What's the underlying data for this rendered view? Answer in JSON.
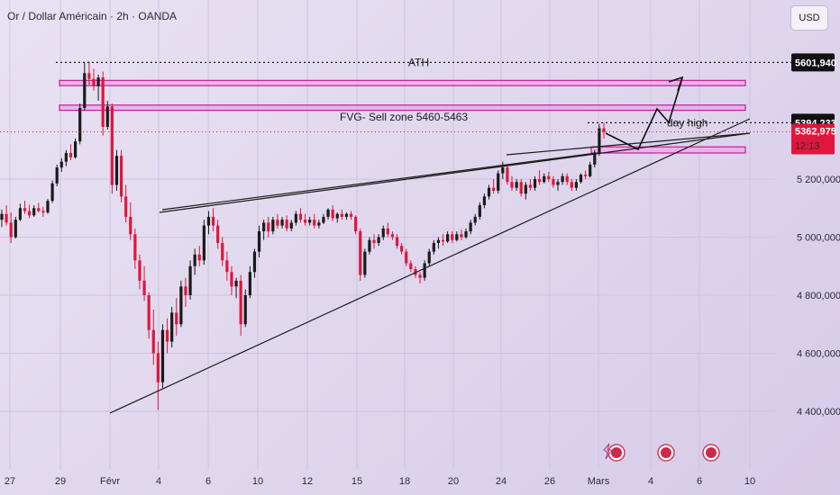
{
  "header": {
    "title": "Or / Dollar Américain · 2h · OANDA"
  },
  "currency_button": {
    "label": "USD"
  },
  "colors": {
    "up": "#1a1a1a",
    "down": "#e0163c",
    "zone_fill": "#e9a8e6",
    "zone_stroke": "#c21e9a",
    "current_price_bg": "#e0163c",
    "label_bg": "#111111"
  },
  "chart_data": {
    "type": "candlestick",
    "title": "Or / Dollar Américain · 2h · OANDA",
    "y_axis": {
      "ticks": [
        4400,
        4600,
        4800,
        5000,
        5200
      ],
      "tick_labels": [
        "4 400,000",
        "4 600,000",
        "4 800,000",
        "5 000,000",
        "5 200,000"
      ]
    },
    "x_axis": {
      "ticks": [
        "27",
        "29",
        "Févr",
        "4",
        "6",
        "10",
        "12",
        "15",
        "18",
        "20",
        "24",
        "26",
        "Mars",
        "4",
        "6",
        "10"
      ]
    },
    "price_labels": [
      {
        "value": 5601.94,
        "text": "5601,940",
        "style": "dark"
      },
      {
        "value": 5394.233,
        "text": "5394,233",
        "style": "dark"
      },
      {
        "value": 5362.975,
        "text": "5362,975",
        "sub": "12:13",
        "style": "current"
      }
    ],
    "annotations": {
      "ath": "ATH",
      "fvg": "FVG- Sell zone  5460-5463",
      "day_high": "day high"
    },
    "zones": [
      [
        5540,
        5522
      ],
      [
        5455,
        5437
      ],
      [
        5311,
        5290
      ]
    ],
    "trendlines": [
      {
        "from": [
          "29 janv.",
          4900
        ],
        "to": [
          "28 févr.",
          5340
        ]
      },
      {
        "from": [
          "1 févr.",
          4406
        ],
        "to": [
          "10 mars",
          5420
        ]
      },
      {
        "from": [
          "4 févr.",
          5100
        ],
        "to": [
          "10 mars",
          5360
        ]
      }
    ],
    "projection": [
      5362,
      5305,
      5420,
      5380,
      5490,
      5560
    ],
    "candles_ohlc": [
      [
        5060,
        5095,
        5035,
        5080
      ],
      [
        5080,
        5110,
        5040,
        5050
      ],
      [
        5050,
        5085,
        4980,
        5000
      ],
      [
        5000,
        5070,
        4995,
        5060
      ],
      [
        5060,
        5115,
        5055,
        5100
      ],
      [
        5100,
        5125,
        5080,
        5090
      ],
      [
        5090,
        5112,
        5065,
        5075
      ],
      [
        5075,
        5110,
        5070,
        5100
      ],
      [
        5100,
        5118,
        5085,
        5090
      ],
      [
        5090,
        5105,
        5070,
        5085
      ],
      [
        5085,
        5132,
        5080,
        5125
      ],
      [
        5125,
        5195,
        5118,
        5185
      ],
      [
        5185,
        5250,
        5175,
        5240
      ],
      [
        5240,
        5272,
        5225,
        5260
      ],
      [
        5260,
        5300,
        5245,
        5290
      ],
      [
        5290,
        5320,
        5265,
        5275
      ],
      [
        5275,
        5340,
        5270,
        5330
      ],
      [
        5330,
        5460,
        5320,
        5445
      ],
      [
        5445,
        5600,
        5435,
        5565
      ],
      [
        5565,
        5605,
        5525,
        5545
      ],
      [
        5545,
        5580,
        5505,
        5520
      ],
      [
        5520,
        5560,
        5470,
        5550
      ],
      [
        5550,
        5570,
        5350,
        5380
      ],
      [
        5380,
        5470,
        5370,
        5450
      ],
      [
        5450,
        5460,
        5150,
        5180
      ],
      [
        5180,
        5300,
        5160,
        5280
      ],
      [
        5280,
        5300,
        5120,
        5140
      ],
      [
        5140,
        5180,
        5050,
        5070
      ],
      [
        5070,
        5120,
        4990,
        5010
      ],
      [
        5010,
        5030,
        4890,
        4920
      ],
      [
        4920,
        4940,
        4820,
        4850
      ],
      [
        4850,
        4900,
        4780,
        4800
      ],
      [
        4800,
        4810,
        4650,
        4680
      ],
      [
        4680,
        4750,
        4560,
        4600
      ],
      [
        4600,
        4640,
        4405,
        4500
      ],
      [
        4500,
        4700,
        4480,
        4680
      ],
      [
        4680,
        4720,
        4600,
        4640
      ],
      [
        4640,
        4760,
        4620,
        4740
      ],
      [
        4740,
        4790,
        4660,
        4700
      ],
      [
        4700,
        4850,
        4690,
        4830
      ],
      [
        4830,
        4860,
        4760,
        4800
      ],
      [
        4800,
        4920,
        4785,
        4900
      ],
      [
        4900,
        4960,
        4870,
        4940
      ],
      [
        4940,
        4970,
        4900,
        4920
      ],
      [
        4920,
        5060,
        4905,
        5040
      ],
      [
        5040,
        5090,
        5010,
        5070
      ],
      [
        5070,
        5100,
        5020,
        5040
      ],
      [
        5040,
        5060,
        4960,
        4980
      ],
      [
        4980,
        5000,
        4900,
        4920
      ],
      [
        4920,
        4950,
        4850,
        4880
      ],
      [
        4880,
        4900,
        4800,
        4830
      ],
      [
        4830,
        4860,
        4790,
        4850
      ],
      [
        4850,
        4870,
        4660,
        4700
      ],
      [
        4700,
        4820,
        4690,
        4800
      ],
      [
        4800,
        4900,
        4790,
        4880
      ],
      [
        4880,
        4960,
        4860,
        4950
      ],
      [
        4950,
        5040,
        4930,
        5020
      ],
      [
        5020,
        5060,
        4990,
        5050
      ],
      [
        5050,
        5070,
        5000,
        5020
      ],
      [
        5020,
        5070,
        5010,
        5060
      ],
      [
        5060,
        5080,
        5030,
        5040
      ],
      [
        5040,
        5070,
        5030,
        5060
      ],
      [
        5060,
        5075,
        5020,
        5030
      ],
      [
        5030,
        5060,
        5020,
        5050
      ],
      [
        5050,
        5090,
        5040,
        5080
      ],
      [
        5080,
        5100,
        5050,
        5060
      ],
      [
        5060,
        5080,
        5040,
        5050
      ],
      [
        5050,
        5070,
        5040,
        5060
      ],
      [
        5060,
        5080,
        5030,
        5040
      ],
      [
        5040,
        5060,
        5030,
        5050
      ],
      [
        5050,
        5080,
        5045,
        5070
      ],
      [
        5070,
        5100,
        5060,
        5095
      ],
      [
        5095,
        5110,
        5055,
        5065
      ],
      [
        5065,
        5085,
        5050,
        5080
      ],
      [
        5080,
        5095,
        5060,
        5070
      ],
      [
        5070,
        5085,
        5060,
        5080
      ],
      [
        5080,
        5090,
        5060,
        5070
      ],
      [
        5070,
        5075,
        5010,
        5020
      ],
      [
        5020,
        5030,
        4850,
        4870
      ],
      [
        4870,
        4960,
        4860,
        4950
      ],
      [
        4950,
        5000,
        4940,
        4990
      ],
      [
        4990,
        5010,
        4960,
        4980
      ],
      [
        4980,
        5010,
        4970,
        5000
      ],
      [
        5000,
        5040,
        4990,
        5030
      ],
      [
        5030,
        5050,
        5000,
        5010
      ],
      [
        5010,
        5020,
        4990,
        5000
      ],
      [
        5000,
        5010,
        4960,
        4970
      ],
      [
        4970,
        4980,
        4940,
        4950
      ],
      [
        4950,
        4960,
        4900,
        4910
      ],
      [
        4910,
        4920,
        4880,
        4890
      ],
      [
        4890,
        4900,
        4860,
        4870
      ],
      [
        4870,
        4880,
        4840,
        4860
      ],
      [
        4860,
        4920,
        4850,
        4910
      ],
      [
        4910,
        4960,
        4900,
        4950
      ],
      [
        4950,
        4990,
        4940,
        4980
      ],
      [
        4980,
        5000,
        4960,
        4990
      ],
      [
        4990,
        5010,
        4970,
        4985
      ],
      [
        4985,
        5020,
        4980,
        5010
      ],
      [
        5010,
        5020,
        4980,
        4990
      ],
      [
        4990,
        5020,
        4985,
        5010
      ],
      [
        5010,
        5025,
        4990,
        5000
      ],
      [
        5000,
        5030,
        4995,
        5020
      ],
      [
        5020,
        5060,
        5010,
        5050
      ],
      [
        5050,
        5080,
        5040,
        5070
      ],
      [
        5070,
        5120,
        5060,
        5110
      ],
      [
        5110,
        5150,
        5100,
        5140
      ],
      [
        5140,
        5180,
        5130,
        5170
      ],
      [
        5170,
        5200,
        5150,
        5160
      ],
      [
        5160,
        5230,
        5150,
        5220
      ],
      [
        5220,
        5260,
        5200,
        5240
      ],
      [
        5240,
        5250,
        5180,
        5190
      ],
      [
        5190,
        5210,
        5160,
        5170
      ],
      [
        5170,
        5200,
        5160,
        5190
      ],
      [
        5190,
        5200,
        5140,
        5150
      ],
      [
        5150,
        5190,
        5130,
        5180
      ],
      [
        5180,
        5200,
        5160,
        5170
      ],
      [
        5170,
        5210,
        5160,
        5200
      ],
      [
        5200,
        5230,
        5180,
        5190
      ],
      [
        5190,
        5220,
        5185,
        5210
      ],
      [
        5210,
        5225,
        5190,
        5200
      ],
      [
        5200,
        5210,
        5170,
        5180
      ],
      [
        5180,
        5200,
        5160,
        5190
      ],
      [
        5190,
        5220,
        5180,
        5210
      ],
      [
        5210,
        5220,
        5180,
        5190
      ],
      [
        5190,
        5200,
        5160,
        5170
      ],
      [
        5170,
        5200,
        5160,
        5190
      ],
      [
        5190,
        5220,
        5185,
        5215
      ],
      [
        5215,
        5230,
        5200,
        5210
      ],
      [
        5210,
        5260,
        5205,
        5250
      ],
      [
        5250,
        5300,
        5240,
        5290
      ],
      [
        5290,
        5390,
        5280,
        5375
      ],
      [
        5375,
        5394,
        5340,
        5362
      ]
    ]
  }
}
